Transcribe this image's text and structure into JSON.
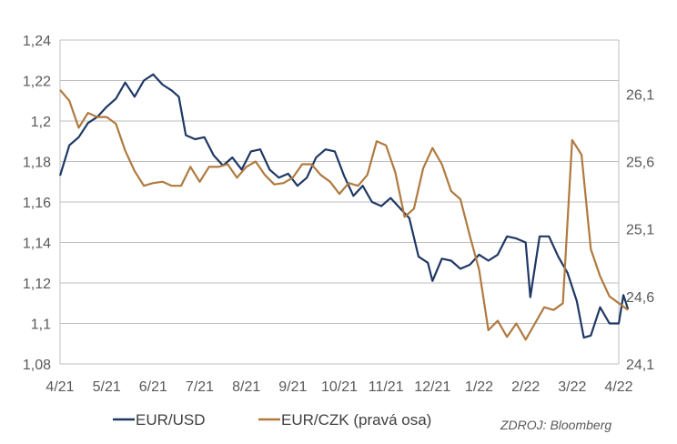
{
  "chart_data": {
    "type": "line",
    "title": "",
    "xlabel": "",
    "ylabel": "",
    "x_ticks": [
      "4/21",
      "5/21",
      "6/21",
      "7/21",
      "8/21",
      "9/21",
      "10/21",
      "11/21",
      "12/21",
      "1/22",
      "2/22",
      "3/22",
      "4/22"
    ],
    "y_left": {
      "ticks": [
        "1,08",
        "1,1",
        "1,12",
        "1,14",
        "1,16",
        "1,18",
        "1,2",
        "1,22",
        "1,24"
      ],
      "range": [
        1.08,
        1.24
      ]
    },
    "y_right": {
      "ticks": [
        "24,1",
        "24,6",
        "25,1",
        "25,6",
        "26,1"
      ],
      "range": [
        24.1,
        26.5
      ]
    },
    "grid": true,
    "legend_placement": "bottom-left",
    "series": [
      {
        "name": "EUR/USD",
        "axis": "left",
        "color": "#1f3864",
        "points": [
          [
            0.0,
            1.173
          ],
          [
            0.2,
            1.188
          ],
          [
            0.4,
            1.192
          ],
          [
            0.6,
            1.199
          ],
          [
            0.8,
            1.202
          ],
          [
            1.0,
            1.207
          ],
          [
            1.2,
            1.211
          ],
          [
            1.4,
            1.219
          ],
          [
            1.6,
            1.212
          ],
          [
            1.8,
            1.22
          ],
          [
            2.0,
            1.223
          ],
          [
            2.2,
            1.218
          ],
          [
            2.4,
            1.215
          ],
          [
            2.55,
            1.212
          ],
          [
            2.7,
            1.193
          ],
          [
            2.9,
            1.191
          ],
          [
            3.1,
            1.192
          ],
          [
            3.3,
            1.183
          ],
          [
            3.5,
            1.178
          ],
          [
            3.7,
            1.182
          ],
          [
            3.9,
            1.176
          ],
          [
            4.1,
            1.185
          ],
          [
            4.3,
            1.186
          ],
          [
            4.5,
            1.176
          ],
          [
            4.7,
            1.172
          ],
          [
            4.9,
            1.174
          ],
          [
            5.1,
            1.168
          ],
          [
            5.3,
            1.172
          ],
          [
            5.5,
            1.182
          ],
          [
            5.7,
            1.186
          ],
          [
            5.9,
            1.185
          ],
          [
            6.1,
            1.173
          ],
          [
            6.3,
            1.163
          ],
          [
            6.5,
            1.168
          ],
          [
            6.7,
            1.16
          ],
          [
            6.9,
            1.158
          ],
          [
            7.1,
            1.162
          ],
          [
            7.3,
            1.157
          ],
          [
            7.5,
            1.152
          ],
          [
            7.7,
            1.133
          ],
          [
            7.9,
            1.13
          ],
          [
            8.0,
            1.121
          ],
          [
            8.2,
            1.132
          ],
          [
            8.4,
            1.131
          ],
          [
            8.6,
            1.127
          ],
          [
            8.8,
            1.129
          ],
          [
            9.0,
            1.134
          ],
          [
            9.2,
            1.131
          ],
          [
            9.4,
            1.134
          ],
          [
            9.6,
            1.143
          ],
          [
            9.8,
            1.142
          ],
          [
            10.0,
            1.14
          ],
          [
            10.1,
            1.113
          ],
          [
            10.3,
            1.143
          ],
          [
            10.5,
            1.143
          ],
          [
            10.7,
            1.133
          ],
          [
            10.9,
            1.125
          ],
          [
            11.1,
            1.111
          ],
          [
            11.25,
            1.093
          ],
          [
            11.4,
            1.094
          ],
          [
            11.6,
            1.108
          ],
          [
            11.8,
            1.1
          ],
          [
            12.0,
            1.1
          ],
          [
            12.1,
            1.114
          ],
          [
            12.2,
            1.107
          ]
        ]
      },
      {
        "name": "EUR/CZK (pravá osa)",
        "axis": "right",
        "color": "#b07a3f",
        "points": [
          [
            0.0,
            26.13
          ],
          [
            0.2,
            26.05
          ],
          [
            0.4,
            25.85
          ],
          [
            0.6,
            25.96
          ],
          [
            0.8,
            25.93
          ],
          [
            1.0,
            25.93
          ],
          [
            1.2,
            25.88
          ],
          [
            1.4,
            25.68
          ],
          [
            1.6,
            25.53
          ],
          [
            1.8,
            25.42
          ],
          [
            2.0,
            25.44
          ],
          [
            2.2,
            25.45
          ],
          [
            2.4,
            25.42
          ],
          [
            2.6,
            25.42
          ],
          [
            2.8,
            25.56
          ],
          [
            3.0,
            25.45
          ],
          [
            3.2,
            25.56
          ],
          [
            3.4,
            25.56
          ],
          [
            3.6,
            25.58
          ],
          [
            3.8,
            25.48
          ],
          [
            4.0,
            25.56
          ],
          [
            4.2,
            25.6
          ],
          [
            4.4,
            25.5
          ],
          [
            4.6,
            25.43
          ],
          [
            4.8,
            25.44
          ],
          [
            5.0,
            25.48
          ],
          [
            5.2,
            25.58
          ],
          [
            5.4,
            25.58
          ],
          [
            5.6,
            25.5
          ],
          [
            5.8,
            25.45
          ],
          [
            6.0,
            25.36
          ],
          [
            6.2,
            25.44
          ],
          [
            6.4,
            25.42
          ],
          [
            6.6,
            25.5
          ],
          [
            6.8,
            25.75
          ],
          [
            7.0,
            25.72
          ],
          [
            7.2,
            25.52
          ],
          [
            7.4,
            25.19
          ],
          [
            7.6,
            25.25
          ],
          [
            7.8,
            25.55
          ],
          [
            8.0,
            25.7
          ],
          [
            8.2,
            25.58
          ],
          [
            8.4,
            25.38
          ],
          [
            8.6,
            25.32
          ],
          [
            8.8,
            25.05
          ],
          [
            9.0,
            24.8
          ],
          [
            9.2,
            24.35
          ],
          [
            9.4,
            24.42
          ],
          [
            9.6,
            24.3
          ],
          [
            9.8,
            24.4
          ],
          [
            10.0,
            24.28
          ],
          [
            10.2,
            24.4
          ],
          [
            10.4,
            24.52
          ],
          [
            10.6,
            24.5
          ],
          [
            10.8,
            24.55
          ],
          [
            11.0,
            25.76
          ],
          [
            11.2,
            25.65
          ],
          [
            11.4,
            24.95
          ],
          [
            11.6,
            24.75
          ],
          [
            11.8,
            24.6
          ],
          [
            12.0,
            24.55
          ],
          [
            12.2,
            24.5
          ]
        ]
      }
    ],
    "source_note": "ZDROJ: Bloomberg"
  }
}
